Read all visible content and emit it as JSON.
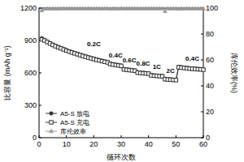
{
  "chart_data": {
    "type": "line",
    "x_label": "循环次数",
    "y_label": "比容量 (mAh g⁻¹)",
    "y2_label": "库伦效率(%)",
    "x": [
      1,
      2,
      3,
      4,
      5,
      6,
      7,
      8,
      9,
      10,
      11,
      12,
      13,
      14,
      15,
      16,
      17,
      18,
      19,
      20,
      21,
      22,
      23,
      24,
      25,
      26,
      27,
      28,
      29,
      30,
      31,
      32,
      33,
      34,
      35,
      36,
      37,
      38,
      39,
      40,
      41,
      42,
      43,
      44,
      45,
      46,
      47,
      48,
      49,
      50,
      51,
      52,
      53,
      54,
      55,
      56,
      57,
      58,
      59,
      60
    ],
    "xlim": [
      0,
      60
    ],
    "xticks": [
      0,
      10,
      20,
      30,
      40,
      50,
      60
    ],
    "ylim": [
      0,
      1200
    ],
    "yticks": [
      0,
      300,
      600,
      900,
      1200
    ],
    "y2lim": [
      0,
      100
    ],
    "y2ticks": [
      0,
      20,
      40,
      60,
      80,
      100
    ],
    "grid": false,
    "legend": "lower left",
    "series": [
      {
        "name": "A5-S 放电",
        "color": "#333333",
        "marker": "circle",
        "line_style": "solid",
        "values": [
          920,
          905,
          890,
          875,
          862,
          850,
          840,
          830,
          820,
          810,
          800,
          792,
          784,
          776,
          768,
          760,
          752,
          745,
          738,
          731,
          724,
          718,
          712,
          706,
          700,
          685,
          680,
          676,
          672,
          668,
          635,
          632,
          629,
          626,
          623,
          605,
          602,
          600,
          598,
          596,
          580,
          577,
          575,
          573,
          571,
          545,
          542,
          540,
          538,
          536,
          655,
          652,
          649,
          646,
          643,
          641,
          639,
          637,
          635,
          633
        ]
      },
      {
        "name": "A5-S 充电",
        "color": "#333333",
        "marker": "square",
        "line_style": "solid",
        "values": [
          910,
          900,
          886,
          872,
          859,
          847,
          837,
          827,
          817,
          807,
          797,
          789,
          781,
          773,
          765,
          757,
          749,
          742,
          735,
          728,
          721,
          715,
          709,
          703,
          697,
          682,
          677,
          673,
          669,
          665,
          632,
          629,
          626,
          623,
          620,
          602,
          599,
          597,
          595,
          593,
          577,
          574,
          572,
          570,
          568,
          542,
          539,
          537,
          535,
          533,
          652,
          649,
          646,
          643,
          640,
          638,
          636,
          634,
          632,
          630
        ]
      },
      {
        "name": "库伦效率",
        "color": "#999999",
        "marker": "triangle",
        "line_style": "solid",
        "axis": "y2",
        "values": [
          98.2,
          99.4,
          99.5,
          99.6,
          99.6,
          99.5,
          99.6,
          99.6,
          99.7,
          99.6,
          99.6,
          99.7,
          99.6,
          99.6,
          99.7,
          99.6,
          99.6,
          99.7,
          99.6,
          99.6,
          99.7,
          99.6,
          99.6,
          99.7,
          99.6,
          99.5,
          99.6,
          99.6,
          99.6,
          99.7,
          99.6,
          99.6,
          99.7,
          99.6,
          99.6,
          99.7,
          99.6,
          99.6,
          99.7,
          99.6,
          99.6,
          99.7,
          99.6,
          99.6,
          99.7,
          97.5,
          99.6,
          99.6,
          99.7,
          99.6,
          99.4,
          99.6,
          99.6,
          99.7,
          99.6,
          99.6,
          99.7,
          99.6,
          99.6,
          99.7
        ]
      }
    ],
    "annotations": [
      {
        "text": "0.2C",
        "x": 20,
        "y": 850
      },
      {
        "text": "0.4C",
        "x": 28,
        "y": 745
      },
      {
        "text": "0.6C",
        "x": 33,
        "y": 695
      },
      {
        "text": "0.8C",
        "x": 38,
        "y": 665
      },
      {
        "text": "1C",
        "x": 43,
        "y": 635
      },
      {
        "text": "2C",
        "x": 48,
        "y": 600
      },
      {
        "text": "0.4C",
        "x": 56,
        "y": 710
      }
    ]
  }
}
